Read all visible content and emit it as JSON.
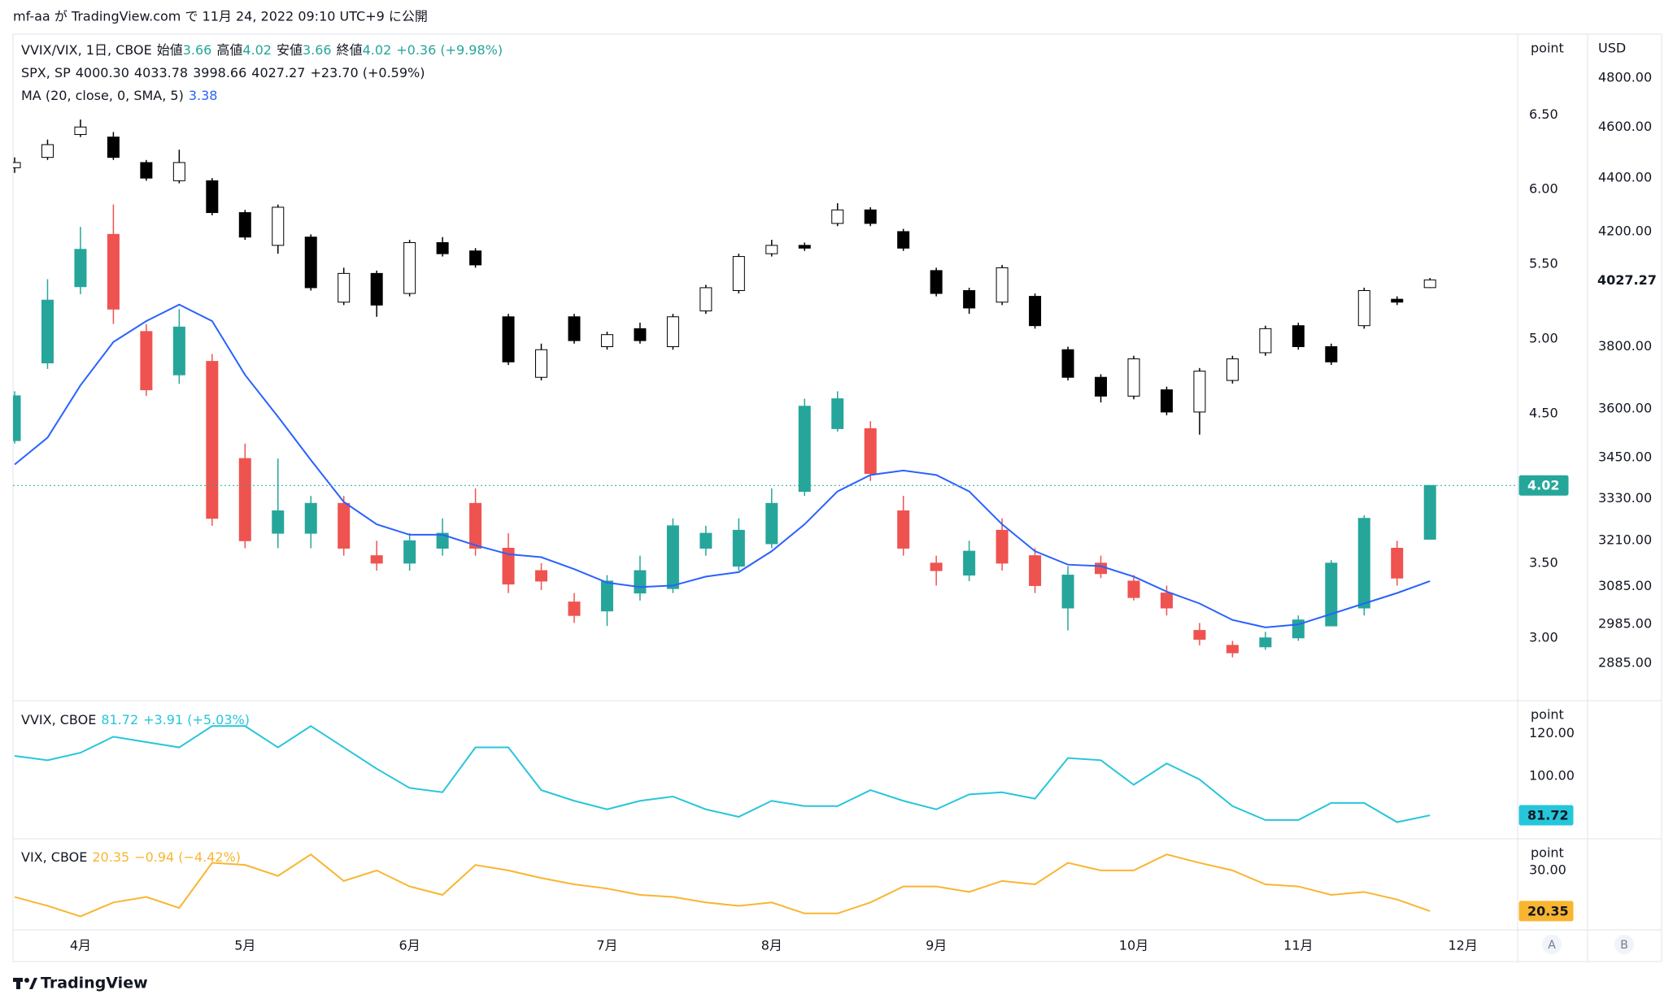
{
  "header": {
    "published": "mf-aa が TradingView.com で 11月 24, 2022 09:10 UTC+9 に公開"
  },
  "footer": {
    "brand": "TradingView",
    "buttons": [
      "A",
      "B"
    ]
  },
  "chart_data": [
    {
      "type": "candlestick",
      "categories": [
        null,
        null,
        "4月",
        null,
        null,
        null,
        null,
        "5月",
        null,
        null,
        null,
        null,
        "6月",
        null,
        null,
        null,
        null,
        null,
        "7月",
        null,
        null,
        null,
        null,
        "8月",
        null,
        null,
        null,
        null,
        "9月",
        null,
        null,
        null,
        null,
        null,
        "10月",
        null,
        null,
        null,
        null,
        "11月",
        null,
        null,
        null,
        null,
        "12月"
      ],
      "ohlc_names": [
        "始値",
        "高値",
        "安値",
        "終値"
      ],
      "series": [
        {
          "name": "VVIX/VIX, 1日, CBOE",
          "type": "candles",
          "axis": "y",
          "up_color": "#26a69a",
          "down_color": "#ef5350",
          "change_label": "+0.36 (+9.98%)",
          "open": [
            4.32,
            4.84,
            5.35,
            5.7,
            5.05,
            4.76,
            4.85,
            4.2,
            3.7,
            3.7,
            3.9,
            3.55,
            3.5,
            3.6,
            3.9,
            3.6,
            3.45,
            3.24,
            3.18,
            3.3,
            3.33,
            3.6,
            3.48,
            3.63,
            3.98,
            4.4,
            4.4,
            3.85,
            3.5,
            3.42,
            3.72,
            3.55,
            3.2,
            3.5,
            3.38,
            3.3,
            3.05,
            2.95,
            2.94,
            3.0,
            3.08,
            3.2,
            3.6,
            3.66,
            null
          ],
          "high": [
            4.65,
            5.4,
            5.75,
            5.9,
            5.1,
            5.2,
            4.9,
            4.3,
            4.2,
            3.95,
            3.95,
            3.65,
            3.7,
            3.8,
            4.0,
            3.7,
            3.5,
            3.3,
            3.42,
            3.55,
            3.8,
            3.75,
            3.8,
            4.0,
            4.6,
            4.65,
            4.45,
            3.95,
            3.55,
            3.65,
            3.8,
            3.6,
            3.48,
            3.55,
            3.42,
            3.35,
            3.1,
            2.98,
            3.04,
            3.15,
            3.52,
            3.82,
            3.65,
            4.02,
            null
          ],
          "low": [
            4.3,
            4.8,
            5.3,
            5.1,
            4.62,
            4.7,
            3.75,
            3.6,
            3.6,
            3.6,
            3.55,
            3.45,
            3.45,
            3.55,
            3.55,
            3.3,
            3.32,
            3.1,
            3.08,
            3.25,
            3.3,
            3.55,
            3.45,
            3.6,
            3.95,
            4.38,
            4.05,
            3.55,
            3.35,
            3.38,
            3.45,
            3.3,
            3.05,
            3.4,
            3.25,
            3.15,
            2.95,
            2.87,
            2.92,
            2.98,
            3.08,
            3.15,
            3.35,
            3.66,
            null
          ],
          "close": [
            4.62,
            5.26,
            5.6,
            5.2,
            4.66,
            5.08,
            3.8,
            3.65,
            3.85,
            3.9,
            3.6,
            3.5,
            3.65,
            3.7,
            3.6,
            3.36,
            3.38,
            3.15,
            3.38,
            3.45,
            3.75,
            3.7,
            3.72,
            3.9,
            4.55,
            4.6,
            4.1,
            3.6,
            3.45,
            3.58,
            3.5,
            3.35,
            3.42,
            3.43,
            3.27,
            3.2,
            2.99,
            2.9,
            3.0,
            3.12,
            3.5,
            3.8,
            3.4,
            4.02,
            null
          ]
        },
        {
          "name": "SPX, SP",
          "type": "candles",
          "axis": "y2",
          "up_color": "#ffffff",
          "down_color": "#000000",
          "edge_color": "#000000",
          "ohlc_labels": [
            "4000.30",
            "4033.78",
            "3998.66",
            "4027.27"
          ],
          "change_label": "+23.70 (+0.59%)",
          "open": [
            4440,
            4480,
            4570,
            4560,
            4460,
            4390,
            4390,
            4270,
            4150,
            4180,
            3950,
            4050,
            3980,
            4160,
            4130,
            3900,
            3700,
            3900,
            3800,
            3860,
            3800,
            3920,
            3990,
            4120,
            4150,
            4230,
            4280,
            4200,
            4060,
            3990,
            3950,
            3970,
            3790,
            3700,
            3640,
            3660,
            3590,
            3690,
            3780,
            3870,
            3800,
            3870,
            3960,
            4000.3,
            null
          ],
          "high": [
            4480,
            4550,
            4630,
            4580,
            4470,
            4510,
            4400,
            4280,
            4300,
            4190,
            4070,
            4060,
            4170,
            4180,
            4140,
            3910,
            3810,
            3910,
            3850,
            3880,
            3910,
            4010,
            4120,
            4170,
            4160,
            4305,
            4290,
            4210,
            4070,
            4000,
            4080,
            3980,
            3800,
            3710,
            3770,
            3670,
            3730,
            3770,
            3870,
            3880,
            3810,
            4000,
            3970,
            4033.78,
            null
          ],
          "low": [
            4420,
            4470,
            4560,
            4470,
            4390,
            4380,
            4260,
            4170,
            4120,
            3990,
            3940,
            3900,
            3970,
            4110,
            4070,
            3740,
            3690,
            3810,
            3790,
            3810,
            3790,
            3910,
            3980,
            4110,
            4130,
            4220,
            4220,
            4130,
            3970,
            3910,
            3940,
            3860,
            3690,
            3620,
            3630,
            3580,
            3520,
            3680,
            3770,
            3790,
            3740,
            3860,
            3940,
            3998.66,
            null
          ],
          "close": [
            4460,
            4530,
            4600,
            4480,
            4400,
            4460,
            4270,
            4180,
            4290,
            4000,
            4050,
            3940,
            4160,
            4120,
            4080,
            3750,
            3790,
            3820,
            3840,
            3820,
            3900,
            4000,
            4110,
            4150,
            4140,
            4280,
            4230,
            4140,
            3980,
            3930,
            4070,
            3870,
            3700,
            3640,
            3760,
            3590,
            3720,
            3760,
            3860,
            3800,
            3750,
            3990,
            3950,
            4027.27,
            null
          ]
        },
        {
          "name": "MA (20, close, 0, SMA, 5)",
          "type": "line",
          "axis": "y",
          "color": "#2962ff",
          "values": [
            4.16,
            4.34,
            4.69,
            4.98,
            5.12,
            5.23,
            5.12,
            4.76,
            4.48,
            4.19,
            3.91,
            3.76,
            3.69,
            3.69,
            3.62,
            3.56,
            3.54,
            3.46,
            3.37,
            3.34,
            3.35,
            3.41,
            3.44,
            3.58,
            3.76,
            3.98,
            4.09,
            4.12,
            4.09,
            3.98,
            3.76,
            3.58,
            3.49,
            3.48,
            3.41,
            3.31,
            3.23,
            3.12,
            3.07,
            3.09,
            3.16,
            3.23,
            3.3,
            3.38,
            null
          ]
        }
      ],
      "ylim": [
        2.58,
        7.04
      ],
      "yticks": [
        {
          "value": 3,
          "label": "3.00"
        },
        {
          "value": 3.5,
          "label": "3.50"
        },
        {
          "value": 4,
          "label": "4.00"
        },
        {
          "value": 4.5,
          "label": "4.50"
        },
        {
          "value": 5,
          "label": "5.00"
        },
        {
          "value": 5.5,
          "label": "5.50"
        },
        {
          "value": 6,
          "label": "6.00"
        },
        {
          "value": 6.5,
          "label": "6.50"
        }
      ],
      "y_axis_label": "point",
      "y2lim": [
        2793,
        4987
      ],
      "y2log": true,
      "y2ticks": [
        {
          "value": 2885,
          "label": "2885.00"
        },
        {
          "value": 2985,
          "label": "2985.00"
        },
        {
          "value": 3085,
          "label": "3085.00"
        },
        {
          "value": 3210,
          "label": "3210.00"
        },
        {
          "value": 3330,
          "label": "3330.00"
        },
        {
          "value": 3450,
          "label": "3450.00"
        },
        {
          "value": 3600,
          "label": "3600.00"
        },
        {
          "value": 3800,
          "label": "3800.00"
        },
        {
          "value": 4200,
          "label": "4200.00"
        },
        {
          "value": 4400,
          "label": "4400.00"
        },
        {
          "value": 4600,
          "label": "4600.00"
        },
        {
          "value": 4800,
          "label": "4800.00"
        }
      ],
      "y2_axis_label": "USD",
      "grid": false
    },
    {
      "type": "line",
      "series": [
        {
          "name": "VVIX, CBOE",
          "color": "#26c6da",
          "change_label": "+3.91 (+5.03%)",
          "values": [
            109.5,
            107.5,
            111,
            118.5,
            116,
            113.5,
            123.5,
            123.5,
            113.5,
            123.5,
            113.5,
            103.5,
            94.5,
            92.5,
            113.5,
            113.5,
            93.5,
            88.5,
            84.5,
            88.5,
            90.5,
            84.5,
            81,
            88.5,
            86,
            86,
            93.5,
            88.5,
            84.5,
            91.5,
            92.5,
            89.5,
            108.5,
            107.5,
            96,
            106,
            98.5,
            86,
            79.5,
            79.5,
            87.5,
            87.5,
            78.5,
            81.72,
            null
          ]
        }
      ],
      "ylim": [
        70.7,
        135.4
      ],
      "yticks": [
        {
          "value": 100,
          "label": "100.00"
        },
        {
          "value": 120,
          "label": "120.00"
        }
      ],
      "y_axis_label": "point",
      "grid": false
    },
    {
      "type": "line",
      "series": [
        {
          "name": "VIX, CBOE",
          "color": "#f9b530",
          "change_label": "−0.94 (−4.42%)",
          "values": [
            23.7,
            21.6,
            19.1,
            22.4,
            23.7,
            21.1,
            31.8,
            31.3,
            28.7,
            33.8,
            27.5,
            30,
            26.2,
            24.2,
            31.3,
            30,
            28.2,
            26.7,
            25.7,
            24.2,
            23.7,
            22.4,
            21.6,
            22.4,
            19.8,
            19.8,
            22.4,
            26.2,
            26.2,
            24.9,
            27.5,
            26.7,
            31.8,
            30,
            30,
            33.8,
            31.8,
            30,
            26.7,
            26.2,
            24.2,
            24.9,
            23.1,
            20.35,
            null
          ]
        }
      ],
      "ylim": [
        15.9,
        37.5
      ],
      "yticks": [
        {
          "value": 30,
          "label": "30.00"
        }
      ],
      "y_axis_label": "point",
      "grid": false
    }
  ]
}
